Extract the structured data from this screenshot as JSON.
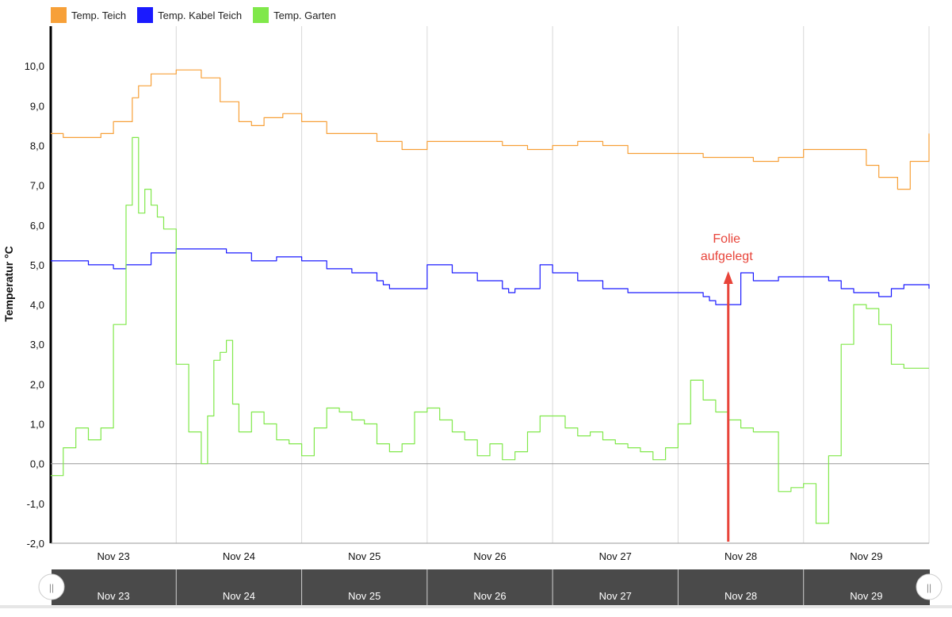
{
  "legend": [
    {
      "label": "Temp. Teich",
      "color": "#f7a038"
    },
    {
      "label": "Temp. Kabel Teich",
      "color": "#1a1aff"
    },
    {
      "label": "Temp. Garten",
      "color": "#80e84a"
    }
  ],
  "chart_data": {
    "type": "line",
    "ylabel": "Temperatur °C",
    "ylim": [
      -2.0,
      11.0
    ],
    "yticks": [
      "-2,0",
      "-1,0",
      "0,0",
      "1,0",
      "2,0",
      "3,0",
      "4,0",
      "5,0",
      "6,0",
      "7,0",
      "8,0",
      "9,0",
      "10,0"
    ],
    "xlim": [
      0,
      7.0
    ],
    "xticks": [
      "Nov 23",
      "Nov 24",
      "Nov 25",
      "Nov 26",
      "Nov 27",
      "Nov 28",
      "Nov 29"
    ],
    "grid": "vertical",
    "legend_position": "top-left",
    "series": [
      {
        "name": "Temp. Teich",
        "color": "#f7a038",
        "x": [
          0,
          0.1,
          0.4,
          0.5,
          0.65,
          0.7,
          0.8,
          1.0,
          1.1,
          1.2,
          1.35,
          1.5,
          1.6,
          1.7,
          1.85,
          2.0,
          2.2,
          2.4,
          2.6,
          2.8,
          3.0,
          3.2,
          3.4,
          3.6,
          3.8,
          4.0,
          4.2,
          4.4,
          4.6,
          4.8,
          5.0,
          5.2,
          5.4,
          5.6,
          5.8,
          6.0,
          6.15,
          6.3,
          6.4,
          6.5,
          6.6,
          6.75,
          6.85,
          7.0
        ],
        "y": [
          8.3,
          8.2,
          8.3,
          8.6,
          9.2,
          9.5,
          9.8,
          9.9,
          9.9,
          9.7,
          9.1,
          8.6,
          8.5,
          8.7,
          8.8,
          8.6,
          8.3,
          8.3,
          8.1,
          7.9,
          8.1,
          8.1,
          8.1,
          8.0,
          7.9,
          8.0,
          8.1,
          8.0,
          7.8,
          7.8,
          7.8,
          7.7,
          7.7,
          7.6,
          7.7,
          7.9,
          7.9,
          7.9,
          7.9,
          7.5,
          7.2,
          6.9,
          7.6,
          8.3
        ]
      },
      {
        "name": "Temp. Kabel Teich",
        "color": "#1a1aff",
        "x": [
          0,
          0.2,
          0.3,
          0.5,
          0.6,
          0.8,
          1.0,
          1.1,
          1.2,
          1.4,
          1.6,
          1.8,
          2.0,
          2.2,
          2.4,
          2.6,
          2.65,
          2.7,
          2.9,
          3.0,
          3.2,
          3.4,
          3.6,
          3.65,
          3.7,
          3.9,
          4.0,
          4.2,
          4.4,
          4.6,
          4.8,
          5.0,
          5.2,
          5.25,
          5.3,
          5.4,
          5.45,
          5.5,
          5.6,
          5.8,
          6.0,
          6.2,
          6.3,
          6.4,
          6.6,
          6.7,
          6.8,
          7.0
        ],
        "y": [
          5.1,
          5.1,
          5.0,
          4.9,
          5.0,
          5.3,
          5.4,
          5.4,
          5.4,
          5.3,
          5.1,
          5.2,
          5.1,
          4.9,
          4.8,
          4.6,
          4.5,
          4.4,
          4.4,
          5.0,
          4.8,
          4.6,
          4.4,
          4.3,
          4.4,
          5.0,
          4.8,
          4.6,
          4.4,
          4.3,
          4.3,
          4.3,
          4.2,
          4.1,
          4.0,
          4.0,
          4.0,
          4.8,
          4.6,
          4.7,
          4.7,
          4.6,
          4.4,
          4.3,
          4.2,
          4.4,
          4.5,
          4.4
        ]
      },
      {
        "name": "Temp. Garten",
        "color": "#80e84a",
        "x": [
          0,
          0.1,
          0.2,
          0.3,
          0.4,
          0.5,
          0.6,
          0.65,
          0.7,
          0.75,
          0.8,
          0.85,
          0.9,
          1.0,
          1.1,
          1.2,
          1.25,
          1.3,
          1.35,
          1.4,
          1.45,
          1.5,
          1.6,
          1.7,
          1.8,
          1.9,
          2.0,
          2.1,
          2.2,
          2.3,
          2.4,
          2.5,
          2.6,
          2.7,
          2.8,
          2.9,
          3.0,
          3.1,
          3.2,
          3.3,
          3.4,
          3.5,
          3.6,
          3.7,
          3.8,
          3.9,
          4.0,
          4.1,
          4.2,
          4.3,
          4.4,
          4.5,
          4.6,
          4.7,
          4.8,
          4.9,
          5.0,
          5.1,
          5.2,
          5.3,
          5.4,
          5.5,
          5.6,
          5.7,
          5.8,
          5.9,
          6.0,
          6.1,
          6.2,
          6.3,
          6.4,
          6.5,
          6.6,
          6.7,
          6.8,
          6.85,
          6.9,
          7.0
        ],
        "y": [
          -0.3,
          0.4,
          0.9,
          0.6,
          0.9,
          3.5,
          6.5,
          8.2,
          6.3,
          6.9,
          6.5,
          6.2,
          5.9,
          2.5,
          0.8,
          0.0,
          1.2,
          2.6,
          2.8,
          3.1,
          1.5,
          0.8,
          1.3,
          1.0,
          0.6,
          0.5,
          0.2,
          0.9,
          1.4,
          1.3,
          1.1,
          1.0,
          0.5,
          0.3,
          0.5,
          1.3,
          1.4,
          1.1,
          0.8,
          0.6,
          0.2,
          0.5,
          0.1,
          0.3,
          0.8,
          1.2,
          1.2,
          0.9,
          0.7,
          0.8,
          0.6,
          0.5,
          0.4,
          0.3,
          0.1,
          0.4,
          1.0,
          2.1,
          1.6,
          1.3,
          1.1,
          0.9,
          0.8,
          0.8,
          -0.7,
          -0.6,
          -0.5,
          -1.5,
          0.2,
          3.0,
          4.0,
          3.9,
          3.5,
          2.5,
          2.4,
          2.4,
          2.4,
          2.4
        ]
      }
    ],
    "annotations": [
      {
        "text_lines": [
          "Folie",
          "aufgelegt"
        ],
        "x": 5.4,
        "y": 4.8,
        "color": "#e8443a"
      }
    ]
  },
  "navigator": {
    "labels": [
      "Nov 23",
      "Nov 24",
      "Nov 25",
      "Nov 26",
      "Nov 27",
      "Nov 28",
      "Nov 29"
    ],
    "handle_left_icon": "||",
    "handle_right_icon": "||"
  }
}
